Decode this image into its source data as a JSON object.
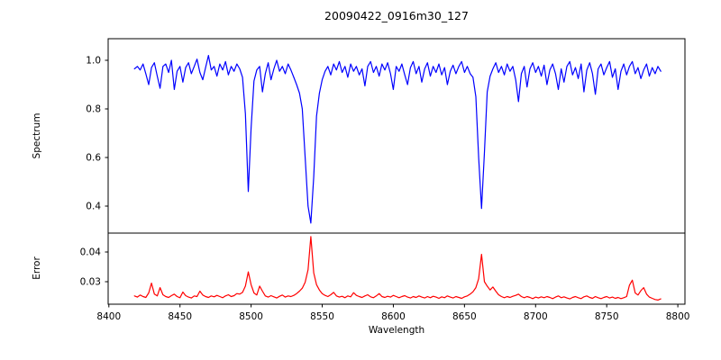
{
  "figure": {
    "title": "20090422_0916m30_127",
    "background": "#ffffff",
    "axes_color": "#000000"
  },
  "chart_data": {
    "type": "line",
    "title": "20090422_0916m30_127",
    "xlabel": "Wavelength",
    "xlim": [
      8399.5,
      8805.0
    ],
    "x_ticks": [
      8400,
      8450,
      8500,
      8550,
      8600,
      8650,
      8700,
      8750,
      8800
    ],
    "x_tick_labels": [
      "8400",
      "8450",
      "8500",
      "8550",
      "8600",
      "8650",
      "8700",
      "8750",
      "8800"
    ],
    "grid": false,
    "legend": "none",
    "panels": [
      {
        "name": "spectrum",
        "ylabel": "Spectrum",
        "color": "#0000ff",
        "ylim": [
          0.2889,
          1.0889
        ],
        "y_ticks": [
          1.0,
          0.8,
          0.6,
          0.4
        ],
        "y_tick_labels": [
          "1.0",
          "0.8",
          "0.6",
          "0.4"
        ],
        "x_start": 8418,
        "x_step": 2,
        "y": [
          0.965,
          0.975,
          0.96,
          0.985,
          0.945,
          0.9,
          0.97,
          0.99,
          0.935,
          0.885,
          0.975,
          0.985,
          0.95,
          1.0,
          0.88,
          0.955,
          0.975,
          0.91,
          0.97,
          0.99,
          0.945,
          0.975,
          1.005,
          0.95,
          0.92,
          0.97,
          1.02,
          0.96,
          0.975,
          0.935,
          0.985,
          0.96,
          0.995,
          0.94,
          0.975,
          0.955,
          0.985,
          0.965,
          0.93,
          0.78,
          0.46,
          0.72,
          0.915,
          0.96,
          0.975,
          0.87,
          0.945,
          0.99,
          0.92,
          0.965,
          1.0,
          0.955,
          0.975,
          0.945,
          0.985,
          0.96,
          0.93,
          0.9,
          0.865,
          0.8,
          0.6,
          0.4,
          0.33,
          0.52,
          0.77,
          0.865,
          0.92,
          0.955,
          0.975,
          0.94,
          0.985,
          0.96,
          0.995,
          0.95,
          0.975,
          0.93,
          0.985,
          0.955,
          0.975,
          0.94,
          0.965,
          0.895,
          0.975,
          0.995,
          0.95,
          0.975,
          0.935,
          0.985,
          0.96,
          0.99,
          0.945,
          0.88,
          0.975,
          0.955,
          0.985,
          0.94,
          0.9,
          0.97,
          0.995,
          0.945,
          0.975,
          0.91,
          0.965,
          0.99,
          0.935,
          0.975,
          0.95,
          0.985,
          0.94,
          0.97,
          0.9,
          0.955,
          0.98,
          0.945,
          0.975,
          0.995,
          0.95,
          0.975,
          0.945,
          0.93,
          0.85,
          0.6,
          0.39,
          0.62,
          0.87,
          0.935,
          0.965,
          0.99,
          0.95,
          0.975,
          0.94,
          0.985,
          0.955,
          0.975,
          0.92,
          0.83,
          0.945,
          0.975,
          0.89,
          0.965,
          0.99,
          0.95,
          0.975,
          0.935,
          0.98,
          0.9,
          0.96,
          0.985,
          0.945,
          0.88,
          0.965,
          0.91,
          0.975,
          0.995,
          0.94,
          0.97,
          0.925,
          0.985,
          0.87,
          0.96,
          0.99,
          0.945,
          0.86,
          0.965,
          0.985,
          0.94,
          0.97,
          0.995,
          0.93,
          0.965,
          0.88,
          0.955,
          0.985,
          0.94,
          0.975,
          0.995,
          0.945,
          0.97,
          0.925,
          0.96,
          0.985,
          0.935,
          0.97,
          0.945,
          0.975,
          0.955
        ]
      },
      {
        "name": "error",
        "ylabel": "Error",
        "color": "#ff0000",
        "ylim": [
          0.02242,
          0.04636
        ],
        "y_ticks": [
          0.04,
          0.03
        ],
        "y_tick_labels": [
          "0.04",
          "0.03"
        ],
        "x_start": 8418,
        "x_step": 2,
        "y": [
          0.0252,
          0.0248,
          0.0255,
          0.025,
          0.0247,
          0.0262,
          0.0295,
          0.0258,
          0.0252,
          0.028,
          0.0256,
          0.025,
          0.0247,
          0.0253,
          0.0258,
          0.025,
          0.0246,
          0.0265,
          0.0253,
          0.0248,
          0.0245,
          0.0252,
          0.025,
          0.0268,
          0.0255,
          0.025,
          0.0247,
          0.0252,
          0.0249,
          0.0254,
          0.025,
          0.0246,
          0.0252,
          0.0256,
          0.025,
          0.0253,
          0.026,
          0.0258,
          0.0264,
          0.0285,
          0.0333,
          0.029,
          0.0262,
          0.0255,
          0.0285,
          0.0268,
          0.0252,
          0.0248,
          0.0253,
          0.0249,
          0.0245,
          0.0251,
          0.0255,
          0.0248,
          0.0252,
          0.025,
          0.0254,
          0.026,
          0.0268,
          0.0278,
          0.0298,
          0.034,
          0.0452,
          0.033,
          0.029,
          0.0272,
          0.026,
          0.0254,
          0.025,
          0.0256,
          0.0264,
          0.0252,
          0.0248,
          0.0251,
          0.0246,
          0.0252,
          0.0249,
          0.0263,
          0.0254,
          0.025,
          0.0247,
          0.0252,
          0.0256,
          0.0249,
          0.0246,
          0.0252,
          0.026,
          0.025,
          0.0247,
          0.0251,
          0.0248,
          0.0254,
          0.025,
          0.0246,
          0.025,
          0.0253,
          0.0248,
          0.0245,
          0.025,
          0.0247,
          0.0252,
          0.0248,
          0.0245,
          0.025,
          0.0246,
          0.0251,
          0.0248,
          0.0244,
          0.0249,
          0.0246,
          0.0252,
          0.0248,
          0.0245,
          0.025,
          0.0247,
          0.0244,
          0.0249,
          0.0252,
          0.0258,
          0.0266,
          0.028,
          0.031,
          0.0392,
          0.03,
          0.0285,
          0.0272,
          0.0282,
          0.0268,
          0.0256,
          0.025,
          0.0246,
          0.025,
          0.0247,
          0.0251,
          0.0254,
          0.0258,
          0.025,
          0.0246,
          0.025,
          0.0247,
          0.0243,
          0.0248,
          0.0245,
          0.0249,
          0.0246,
          0.025,
          0.0247,
          0.0243,
          0.0248,
          0.0252,
          0.0246,
          0.0249,
          0.0245,
          0.0242,
          0.0247,
          0.025,
          0.0246,
          0.0243,
          0.0249,
          0.0252,
          0.0247,
          0.0244,
          0.025,
          0.0246,
          0.0243,
          0.0247,
          0.025,
          0.0245,
          0.0248,
          0.0244,
          0.0247,
          0.0243,
          0.0246,
          0.025,
          0.0288,
          0.0305,
          0.0262,
          0.0255,
          0.027,
          0.028,
          0.0258,
          0.0248,
          0.0244,
          0.024,
          0.0238,
          0.0242
        ]
      }
    ]
  }
}
